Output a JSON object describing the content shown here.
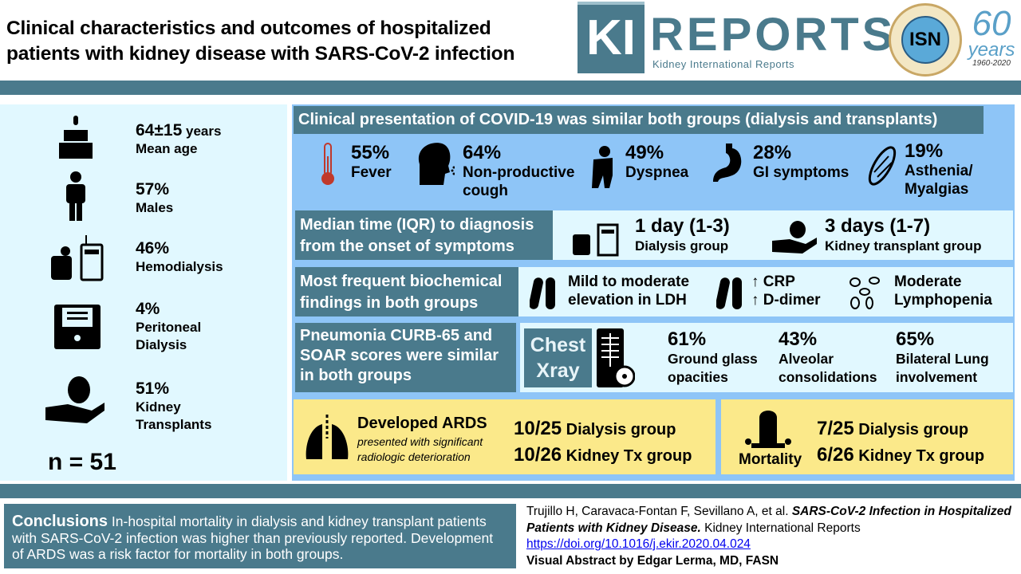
{
  "header": {
    "title_line1": "Clinical characteristics and outcomes of hospitalized",
    "title_line2": "patients with kidney disease with SARS-CoV-2 infection",
    "logo_ki": "KI",
    "logo_reports": "REPORTS",
    "logo_subtitle": "Kidney International Reports",
    "isn_logo": "ISN",
    "anniversary_number": "60",
    "anniversary_word": "years",
    "anniversary_range": "1960-2020"
  },
  "demographics": {
    "items": [
      {
        "value": "64±15",
        "unit": "years",
        "label": "Mean age",
        "icon": "cake-icon"
      },
      {
        "value": "57%",
        "label": "Males",
        "icon": "person-icon"
      },
      {
        "value": "46%",
        "label": "Hemodialysis",
        "icon": "hemodialysis-icon"
      },
      {
        "value": "4%",
        "label_line1": "Peritoneal",
        "label_line2": "Dialysis",
        "icon": "peritoneal-dialysis-icon"
      },
      {
        "value": "51%",
        "label_line1": "Kidney",
        "label_line2": "Transplants",
        "icon": "kidney-transplant-icon"
      }
    ],
    "n": "n = 51"
  },
  "presentation": {
    "heading": "Clinical presentation of COVID-19 was similar both groups (dialysis and transplants)",
    "symptoms": [
      {
        "value": "55%",
        "label": "Fever",
        "icon": "thermometer-icon"
      },
      {
        "value": "64%",
        "label_line1": "Non-productive",
        "label_line2": "cough",
        "icon": "cough-icon"
      },
      {
        "value": "49%",
        "label": "Dyspnea",
        "icon": "dyspnea-icon"
      },
      {
        "value": "28%",
        "label": "GI symptoms",
        "icon": "stomach-icon"
      },
      {
        "value": "19%",
        "label_line1": "Asthenia/",
        "label_line2": "Myalgias",
        "icon": "muscle-icon"
      }
    ]
  },
  "time_to_diagnosis": {
    "heading_line1": "Median time (IQR) to diagnosis",
    "heading_line2": "from the onset of symptoms",
    "dialysis_value": "1 day (1-3)",
    "dialysis_label": "Dialysis group",
    "transplant_value": "3 days (1-7)",
    "transplant_label": "Kidney transplant group"
  },
  "biochemical": {
    "heading_line1": "Most frequent biochemical",
    "heading_line2": "findings in both groups",
    "ldh_line1": "Mild to moderate",
    "ldh_line2": "elevation in LDH",
    "crp": "↑ CRP",
    "ddimer": "↑ D-dimer",
    "lymph_line1": "Moderate",
    "lymph_line2": "Lymphopenia"
  },
  "pneumonia": {
    "heading_line1": "Pneumonia CURB-65 and",
    "heading_line2": "SOAR scores were similar",
    "heading_line3": "in both groups",
    "xray_line1": "Chest",
    "xray_line2": "Xray",
    "findings": [
      {
        "value": "61%",
        "label_line1": "Ground glass",
        "label_line2": "opacities"
      },
      {
        "value": "43%",
        "label_line1": "Alveolar",
        "label_line2": "consolidations"
      },
      {
        "value": "65%",
        "label_line1": "Bilateral Lung",
        "label_line2": "involvement"
      }
    ]
  },
  "ards": {
    "title": "Developed ARDS",
    "subtitle_line1": "presented with significant",
    "subtitle_line2": "radiologic deterioration",
    "dialysis_value": "10/25",
    "dialysis_label": "Dialysis group",
    "tx_value": "10/26",
    "tx_label": "Kidney Tx group"
  },
  "mortality": {
    "title": "Mortality",
    "dialysis_value": "7/25",
    "dialysis_label": "Dialysis group",
    "tx_value": "6/26",
    "tx_label": "Kidney Tx group"
  },
  "conclusions": {
    "label": "Conclusions",
    "text": "In-hospital mortality in dialysis and kidney transplant patients with SARS-CoV-2 infection was higher than previously reported. Development of ARDS was a risk factor for mortality in both groups."
  },
  "citation": {
    "authors": "Trujillo H, Caravaca-Fontan F, Sevillano A, et al.",
    "title": "SARS-CoV-2 Infection in Hospitalized Patients with Kidney Disease.",
    "journal": "Kidney International Reports",
    "doi": "https://doi.org/10.1016/j.ekir.2020.04.024",
    "credit": "Visual Abstract by Edgar Lerma, MD, FASN"
  },
  "colors": {
    "teal": "#4a7a8c",
    "light_blue": "#8ec5f7",
    "cyan": "#e1f8ff",
    "yellow": "#fbe98a"
  }
}
